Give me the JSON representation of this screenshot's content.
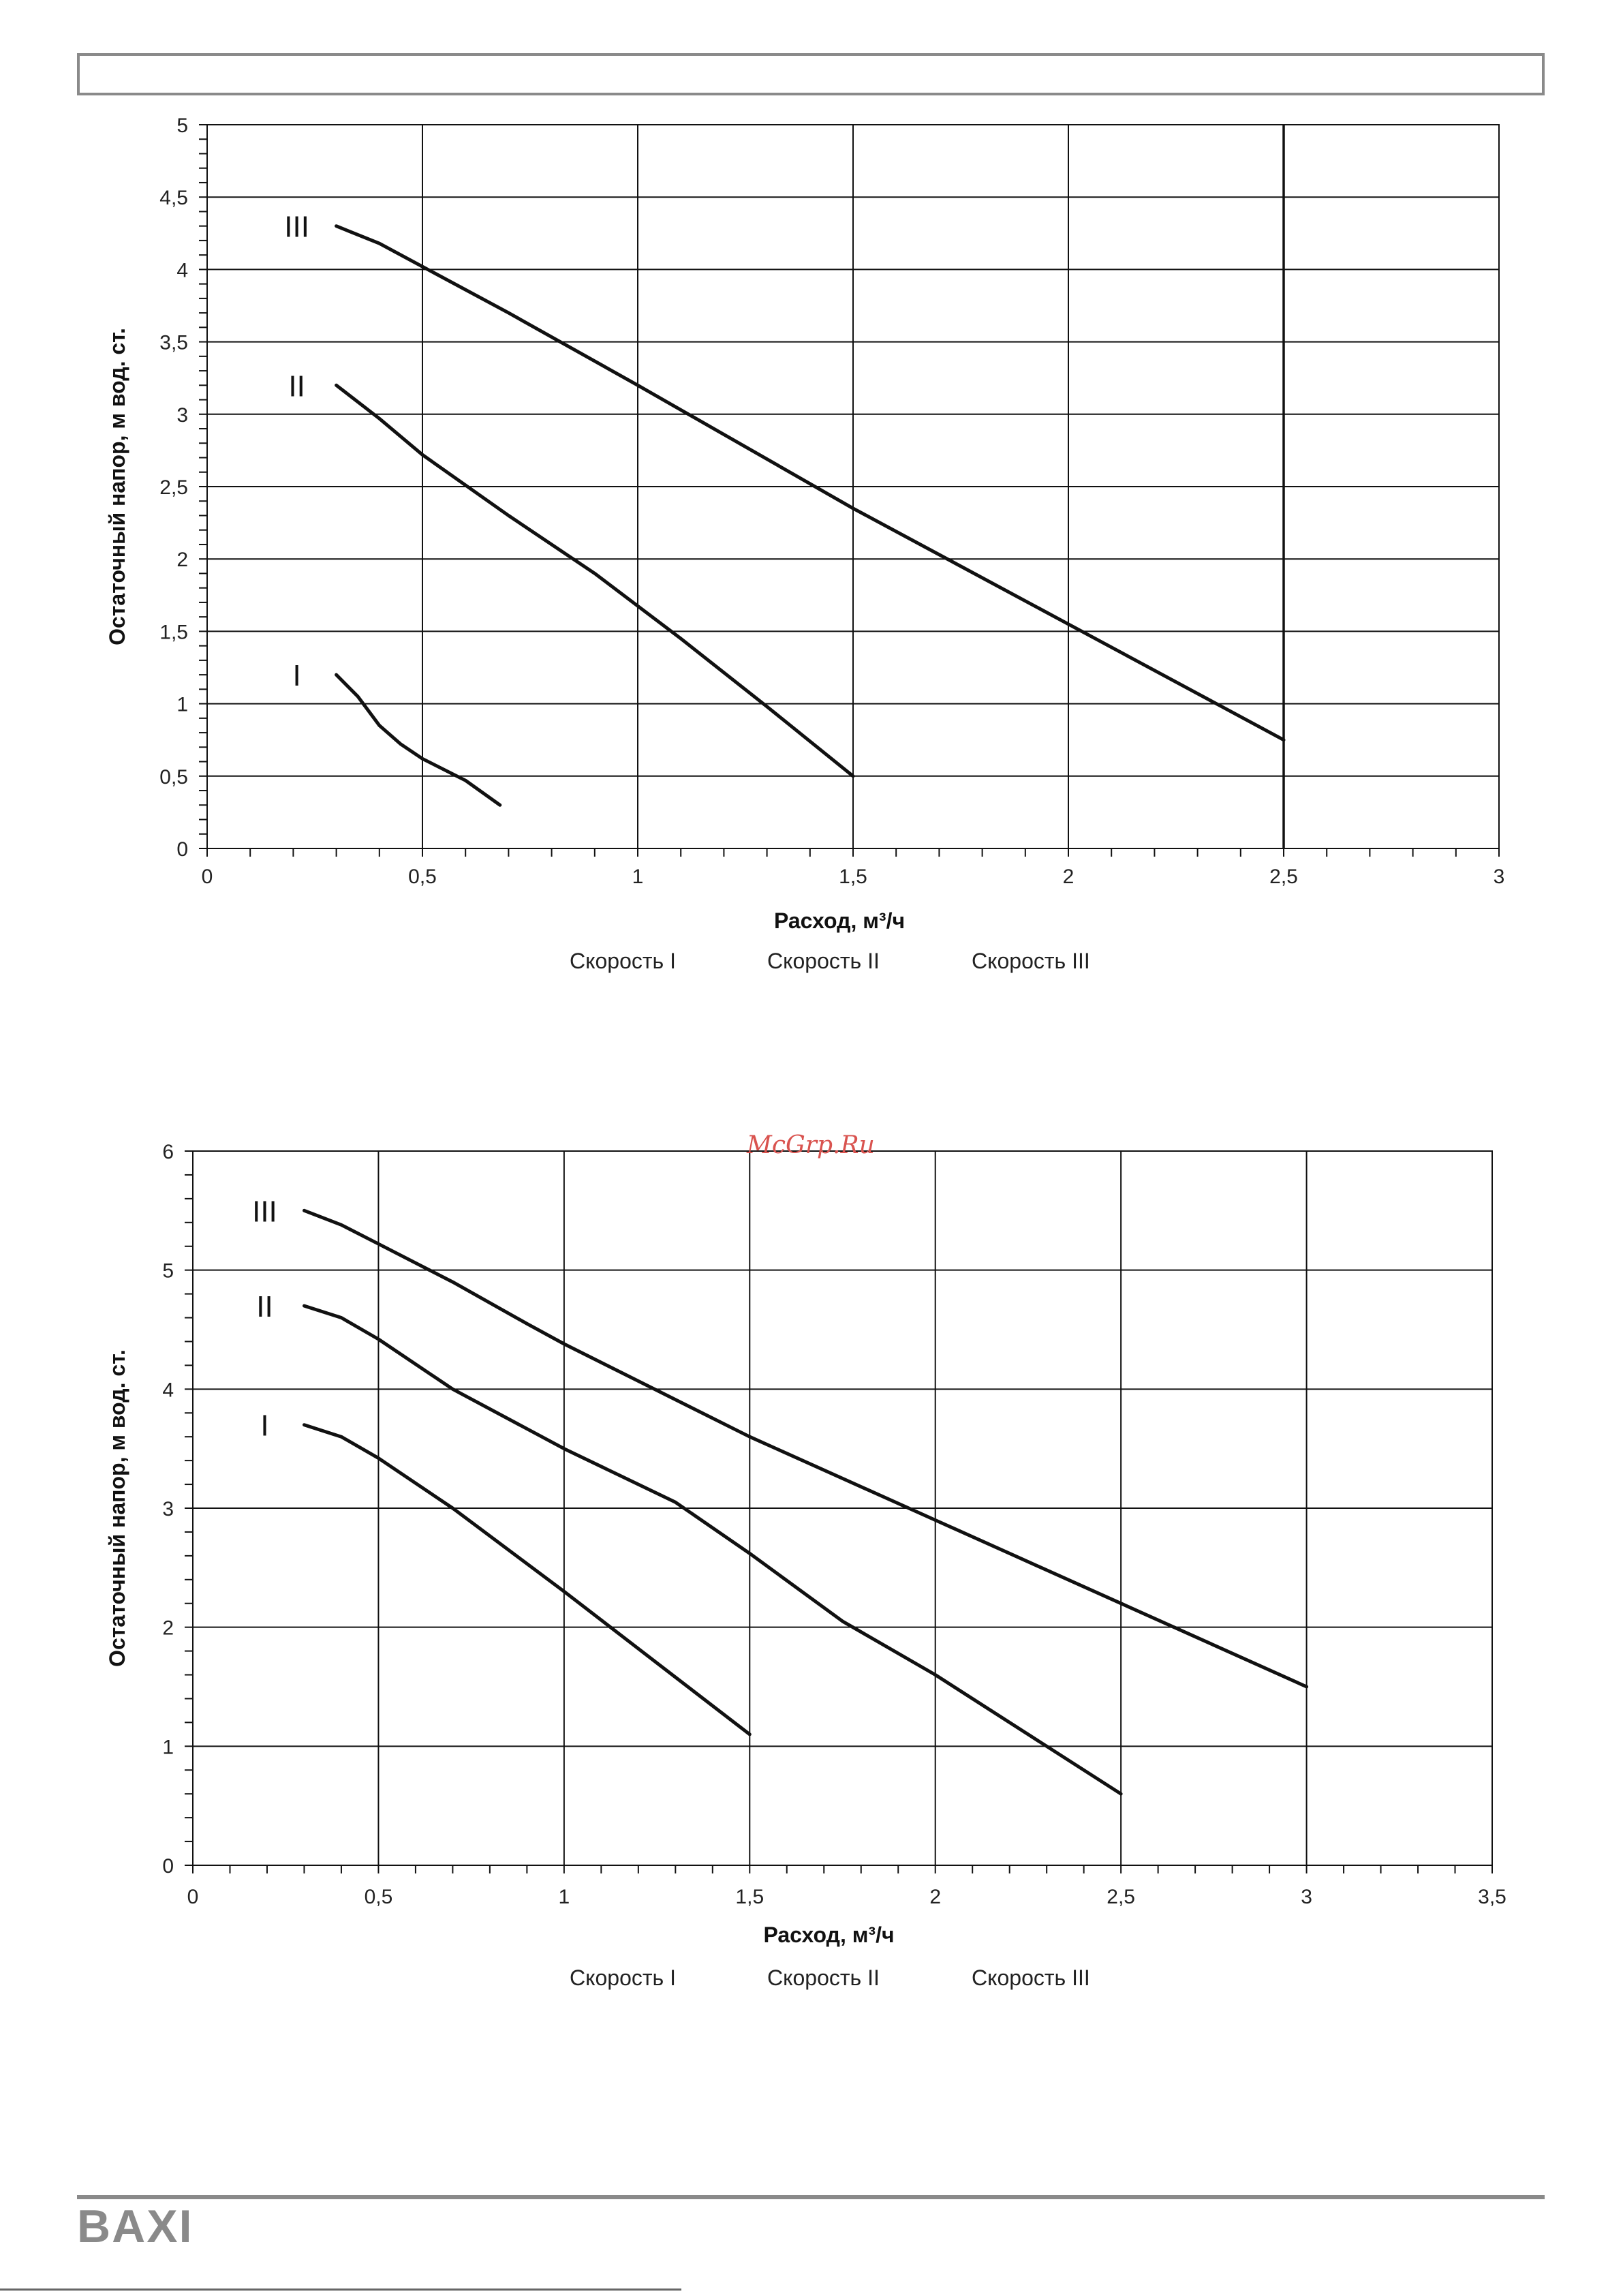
{
  "page": {
    "watermark": "McGrp.Ru",
    "brand": "BAXI"
  },
  "chart_data": [
    {
      "type": "line",
      "title": "",
      "xlabel": "Расход, м³/ч",
      "ylabel": "Остаточный напор, м вод. ст.",
      "xlim": [
        0,
        3
      ],
      "ylim": [
        0,
        5
      ],
      "x_ticks": [
        "0",
        "0,5",
        "1",
        "1,5",
        "2",
        "2,5",
        "3"
      ],
      "y_ticks": [
        "0",
        "0,5",
        "1",
        "1,5",
        "2",
        "2,5",
        "3",
        "3,5",
        "4",
        "4,5",
        "5"
      ],
      "grid": true,
      "legend": [
        "Скорость I",
        "Скорость II",
        "Скорость III"
      ],
      "series": [
        {
          "name": "I",
          "points": [
            [
              0.3,
              1.2
            ],
            [
              0.35,
              1.05
            ],
            [
              0.4,
              0.85
            ],
            [
              0.45,
              0.72
            ],
            [
              0.5,
              0.62
            ],
            [
              0.6,
              0.47
            ],
            [
              0.68,
              0.3
            ]
          ]
        },
        {
          "name": "II",
          "points": [
            [
              0.3,
              3.2
            ],
            [
              0.4,
              2.97
            ],
            [
              0.5,
              2.72
            ],
            [
              0.7,
              2.3
            ],
            [
              0.9,
              1.9
            ],
            [
              1.1,
              1.45
            ],
            [
              1.3,
              0.98
            ],
            [
              1.5,
              0.5
            ]
          ]
        },
        {
          "name": "III",
          "points": [
            [
              0.3,
              4.3
            ],
            [
              0.4,
              4.18
            ],
            [
              0.5,
              4.02
            ],
            [
              0.7,
              3.7
            ],
            [
              1.0,
              3.2
            ],
            [
              1.5,
              2.35
            ],
            [
              2.0,
              1.55
            ],
            [
              2.5,
              0.75
            ]
          ]
        }
      ]
    },
    {
      "type": "line",
      "title": "",
      "xlabel": "Расход, м³/ч",
      "ylabel": "Остаточный напор, м вод. ст.",
      "xlim": [
        0,
        3.5
      ],
      "ylim": [
        0,
        6
      ],
      "x_ticks": [
        "0",
        "0,5",
        "1",
        "1,5",
        "2",
        "2,5",
        "3",
        "3,5"
      ],
      "y_ticks": [
        "0",
        "1",
        "2",
        "3",
        "4",
        "5",
        "6"
      ],
      "grid": true,
      "legend": [
        "Скорость I",
        "Скорость II",
        "Скорость III"
      ],
      "series": [
        {
          "name": "I",
          "points": [
            [
              0.3,
              3.7
            ],
            [
              0.4,
              3.6
            ],
            [
              0.5,
              3.42
            ],
            [
              0.7,
              3.0
            ],
            [
              1.0,
              2.3
            ],
            [
              1.25,
              1.7
            ],
            [
              1.5,
              1.1
            ]
          ]
        },
        {
          "name": "II",
          "points": [
            [
              0.3,
              4.7
            ],
            [
              0.4,
              4.6
            ],
            [
              0.5,
              4.42
            ],
            [
              0.7,
              4.0
            ],
            [
              1.0,
              3.5
            ],
            [
              1.3,
              3.05
            ],
            [
              1.5,
              2.62
            ],
            [
              1.75,
              2.05
            ],
            [
              2.0,
              1.6
            ],
            [
              2.25,
              1.1
            ],
            [
              2.5,
              0.6
            ]
          ]
        },
        {
          "name": "III",
          "points": [
            [
              0.3,
              5.5
            ],
            [
              0.4,
              5.38
            ],
            [
              0.5,
              5.22
            ],
            [
              0.7,
              4.9
            ],
            [
              0.9,
              4.55
            ],
            [
              1.0,
              4.38
            ],
            [
              1.5,
              3.6
            ],
            [
              2.0,
              2.9
            ],
            [
              2.5,
              2.2
            ],
            [
              3.0,
              1.5
            ]
          ]
        }
      ]
    }
  ]
}
